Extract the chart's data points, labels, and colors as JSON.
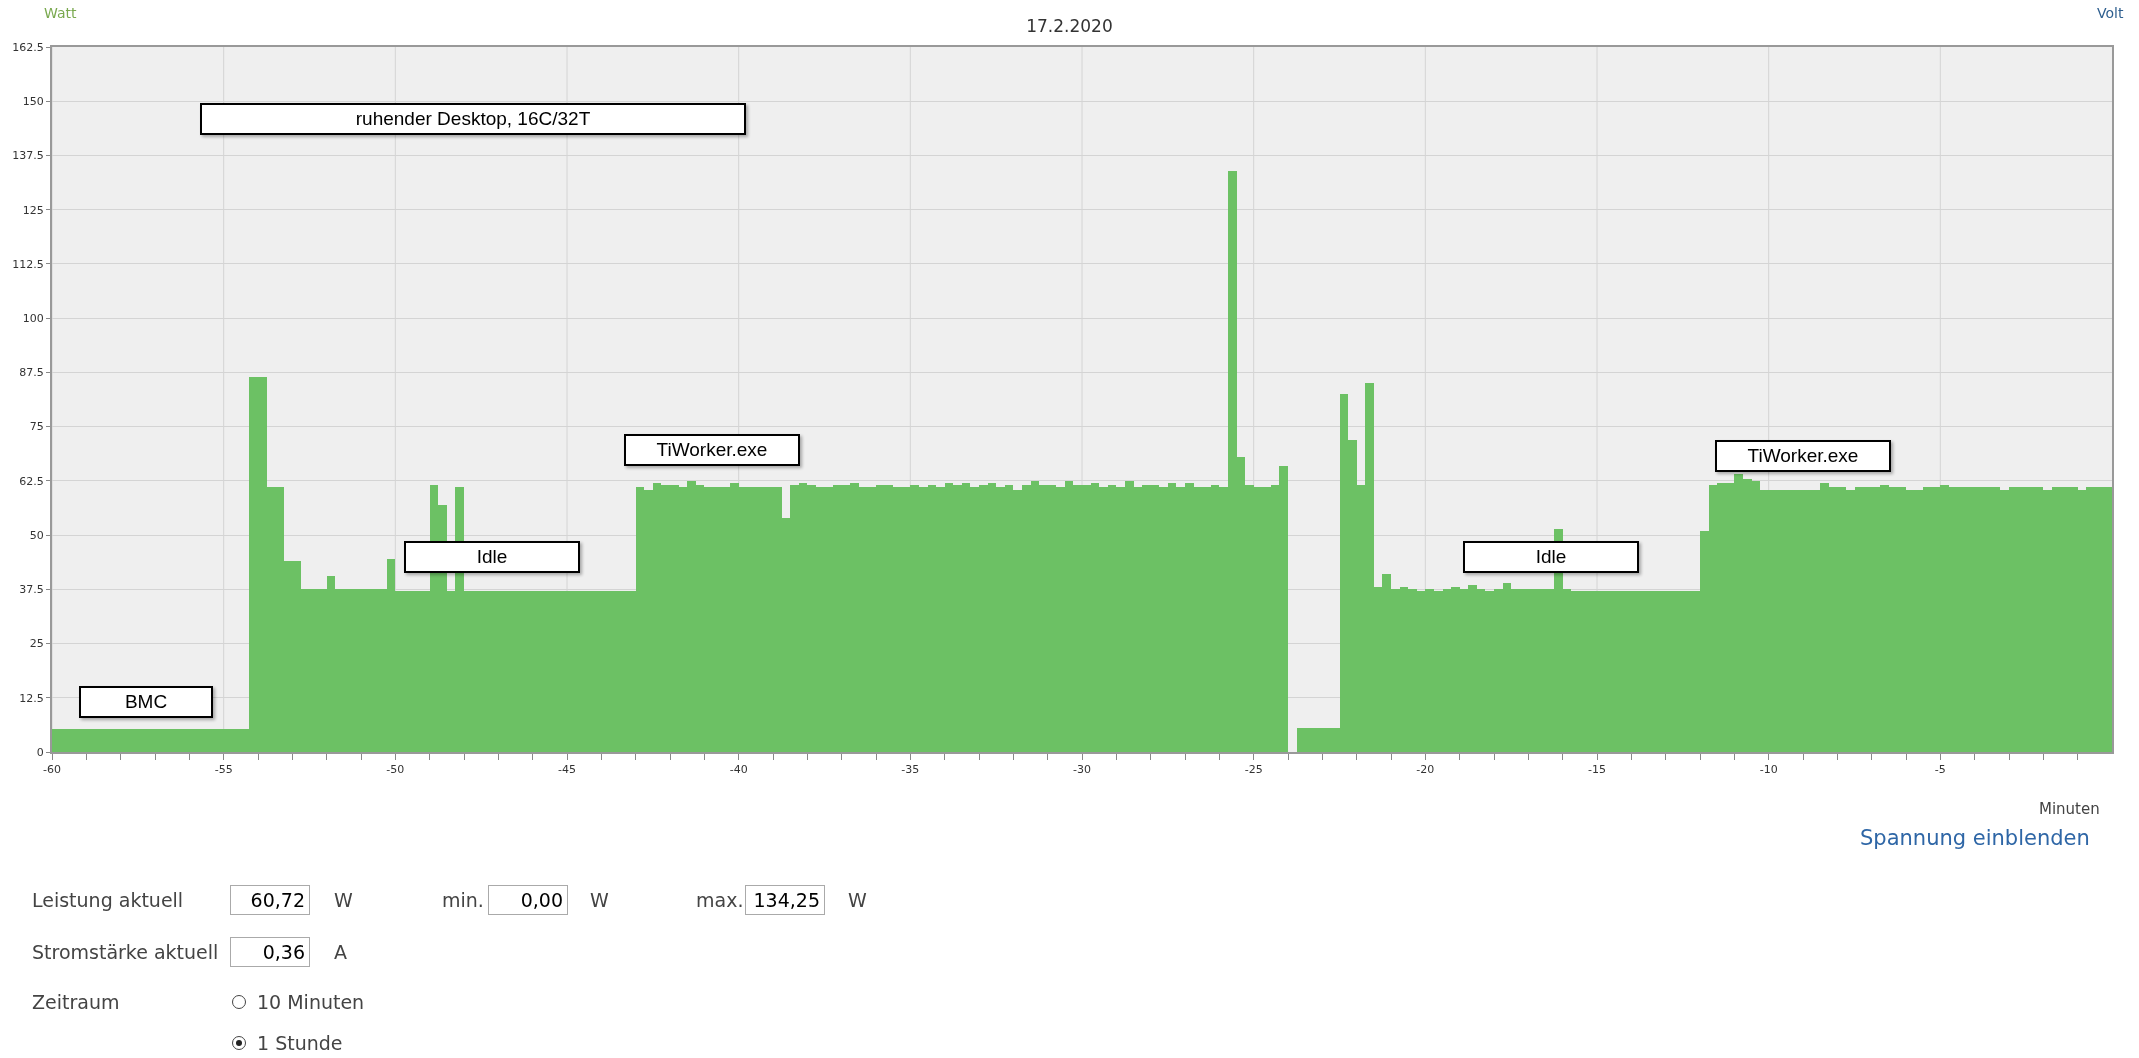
{
  "chart_data": {
    "type": "bar",
    "title": "17.2.2020",
    "ylabel": "Watt",
    "y2label": "Volt",
    "xlabel": "Minuten",
    "x": [
      -59.875,
      -59.625,
      -59.375,
      -59.125,
      -58.875,
      -58.625,
      -58.375,
      -58.125,
      -57.875,
      -57.625,
      -57.375,
      -57.125,
      -56.875,
      -56.625,
      -56.375,
      -56.125,
      -55.875,
      -55.625,
      -55.375,
      -55.125,
      -54.875,
      -54.625,
      -54.375,
      -54.125,
      -53.875,
      -53.625,
      -53.375,
      -53.125,
      -52.875,
      -52.625,
      -52.375,
      -52.125,
      -51.875,
      -51.625,
      -51.375,
      -51.125,
      -50.875,
      -50.625,
      -50.375,
      -50.125,
      -49.875,
      -49.625,
      -49.375,
      -49.125,
      -48.875,
      -48.625,
      -48.375,
      -48.125,
      -47.875,
      -47.625,
      -47.375,
      -47.125,
      -46.875,
      -46.625,
      -46.375,
      -46.125,
      -45.875,
      -45.625,
      -45.375,
      -45.125,
      -44.875,
      -44.625,
      -44.375,
      -44.125,
      -43.875,
      -43.625,
      -43.375,
      -43.125,
      -42.875,
      -42.625,
      -42.375,
      -42.125,
      -41.875,
      -41.625,
      -41.375,
      -41.125,
      -40.875,
      -40.625,
      -40.375,
      -40.125,
      -39.875,
      -39.625,
      -39.375,
      -39.125,
      -38.875,
      -38.625,
      -38.375,
      -38.125,
      -37.875,
      -37.625,
      -37.375,
      -37.125,
      -36.875,
      -36.625,
      -36.375,
      -36.125,
      -35.875,
      -35.625,
      -35.375,
      -35.125,
      -34.875,
      -34.625,
      -34.375,
      -34.125,
      -33.875,
      -33.625,
      -33.375,
      -33.125,
      -32.875,
      -32.625,
      -32.375,
      -32.125,
      -31.875,
      -31.625,
      -31.375,
      -31.125,
      -30.875,
      -30.625,
      -30.375,
      -30.125,
      -29.875,
      -29.625,
      -29.375,
      -29.125,
      -28.875,
      -28.625,
      -28.375,
      -28.125,
      -27.875,
      -27.625,
      -27.375,
      -27.125,
      -26.875,
      -26.625,
      -26.375,
      -26.125,
      -25.875,
      -25.625,
      -25.375,
      -25.125,
      -24.875,
      -24.625,
      -24.375,
      -24.125,
      -23.875,
      -23.625,
      -23.375,
      -23.125,
      -22.875,
      -22.625,
      -22.375,
      -22.125,
      -21.875,
      -21.625,
      -21.375,
      -21.125,
      -20.875,
      -20.625,
      -20.375,
      -20.125,
      -19.875,
      -19.625,
      -19.375,
      -19.125,
      -18.875,
      -18.625,
      -18.375,
      -18.125,
      -17.875,
      -17.625,
      -17.375,
      -17.125,
      -16.875,
      -16.625,
      -16.375,
      -16.125,
      -15.875,
      -15.625,
      -15.375,
      -15.125,
      -14.875,
      -14.625,
      -14.375,
      -14.125,
      -13.875,
      -13.625,
      -13.375,
      -13.125,
      -12.875,
      -12.625,
      -12.375,
      -12.125,
      -11.875,
      -11.625,
      -11.375,
      -11.125,
      -10.875,
      -10.625,
      -10.375,
      -10.125,
      -9.875,
      -9.625,
      -9.375,
      -9.125,
      -8.875,
      -8.625,
      -8.375,
      -8.125,
      -7.875,
      -7.625,
      -7.375,
      -7.125,
      -6.875,
      -6.625,
      -6.375,
      -6.125,
      -5.875,
      -5.625,
      -5.375,
      -5.125,
      -4.875,
      -4.625,
      -4.375,
      -4.125,
      -3.875,
      -3.625,
      -3.375,
      -3.125,
      -2.875,
      -2.625,
      -2.375,
      -2.125,
      -1.875,
      -1.625,
      -1.375,
      -1.125,
      -0.875,
      -0.625,
      -0.375,
      -0.125
    ],
    "series": [
      {
        "color": "#6cc164",
        "values": [
          5.2,
          5.2,
          5.2,
          5.2,
          5.2,
          5.2,
          5.2,
          5.2,
          5.2,
          5.2,
          5.2,
          5.2,
          5.2,
          5.2,
          5.2,
          5.2,
          5.2,
          5.2,
          5.2,
          5.2,
          5.2,
          5.2,
          5.2,
          86.5,
          86.5,
          61,
          61,
          44,
          44,
          37.5,
          37.5,
          37.5,
          40.5,
          37.5,
          37.5,
          37.5,
          37.5,
          37.5,
          37.5,
          44.5,
          37,
          37,
          37,
          37,
          61.5,
          57,
          37,
          61,
          37,
          37,
          37,
          37,
          37,
          37,
          37,
          37,
          37,
          37,
          37,
          37,
          37,
          37,
          37,
          37,
          37,
          37,
          37,
          37,
          61,
          60.5,
          62,
          61.5,
          61.5,
          61,
          62.5,
          61.5,
          61,
          61,
          61,
          62,
          61,
          61,
          61,
          61,
          61,
          54,
          61.5,
          62,
          61.5,
          61,
          61,
          61.5,
          61.5,
          62,
          61,
          61,
          61.5,
          61.5,
          61,
          61,
          61.5,
          61,
          61.5,
          61,
          62,
          61.5,
          62,
          61,
          61.5,
          62,
          61,
          61.5,
          60.5,
          61.5,
          62.5,
          61.5,
          61.5,
          61,
          62.5,
          61.5,
          61.5,
          62,
          61,
          61.5,
          61,
          62.5,
          61,
          61.5,
          61.5,
          61,
          62,
          61,
          62,
          61,
          61,
          61.5,
          61,
          134,
          68,
          61.5,
          61,
          61,
          61.5,
          66,
          0,
          5.5,
          5.5,
          5.5,
          5.5,
          5.5,
          82.5,
          72,
          61.5,
          85,
          38,
          41,
          37.5,
          38,
          37.5,
          37,
          37.5,
          37,
          37.5,
          38,
          37.5,
          38.5,
          37.5,
          37,
          37.5,
          39,
          37.5,
          37.5,
          37.5,
          37.5,
          37.5,
          51.5,
          37.5,
          37,
          37,
          37,
          37,
          37,
          37,
          37,
          37,
          37,
          37,
          37,
          37,
          37,
          37,
          37,
          51,
          61.5,
          62,
          62,
          64,
          63,
          62.5,
          60.5,
          60.5,
          60.5,
          60.5,
          60.5,
          60.5,
          60.5,
          62,
          61,
          61,
          60.5,
          61,
          61,
          61,
          61.5,
          61,
          61,
          60.5,
          60.5,
          61,
          61,
          61.5,
          61,
          61,
          61,
          61,
          61,
          61,
          60.5,
          61,
          61,
          61,
          61,
          60.5,
          61,
          61,
          61,
          60.5,
          61,
          61,
          61
        ]
      }
    ],
    "xlim": [
      -60,
      0
    ],
    "xticks": [
      -60,
      {
        "value": -59,
        "label": null
      },
      {
        "value": -58,
        "label": null
      },
      {
        "value": -57,
        "label": null
      },
      {
        "value": -56,
        "label": null
      },
      -55,
      {
        "value": -54,
        "label": null
      },
      {
        "value": -53,
        "label": null
      },
      {
        "value": -52,
        "label": null
      },
      {
        "value": -51,
        "label": null
      },
      -50,
      {
        "value": -49,
        "label": null
      },
      {
        "value": -48,
        "label": null
      },
      {
        "value": -47,
        "label": null
      },
      {
        "value": -46,
        "label": null
      },
      -45,
      {
        "value": -44,
        "label": null
      },
      {
        "value": -43,
        "label": null
      },
      {
        "value": -42,
        "label": null
      },
      {
        "value": -41,
        "label": null
      },
      -40,
      {
        "value": -39,
        "label": null
      },
      {
        "value": -38,
        "label": null
      },
      {
        "value": -37,
        "label": null
      },
      {
        "value": -36,
        "label": null
      },
      -35,
      {
        "value": -34,
        "label": null
      },
      {
        "value": -33,
        "label": null
      },
      {
        "value": -32,
        "label": null
      },
      {
        "value": -31,
        "label": null
      },
      -30,
      {
        "value": -29,
        "label": null
      },
      {
        "value": -28,
        "label": null
      },
      {
        "value": -27,
        "label": null
      },
      {
        "value": -26,
        "label": null
      },
      -25,
      {
        "value": -24,
        "label": null
      },
      {
        "value": -23,
        "label": null
      },
      {
        "value": -22,
        "label": null
      },
      {
        "value": -21,
        "label": null
      },
      -20,
      {
        "value": -19,
        "label": null
      },
      {
        "value": -18,
        "label": null
      },
      {
        "value": -17,
        "label": null
      },
      {
        "value": -16,
        "label": null
      },
      -15,
      {
        "value": -14,
        "label": null
      },
      {
        "value": -13,
        "label": null
      },
      {
        "value": -12,
        "label": null
      },
      {
        "value": -11,
        "label": null
      },
      -10,
      {
        "value": -9,
        "label": null
      },
      {
        "value": -8,
        "label": null
      },
      {
        "value": -7,
        "label": null
      },
      {
        "value": -6,
        "label": null
      },
      -5,
      {
        "value": -4,
        "label": null
      },
      {
        "value": -3,
        "label": null
      },
      {
        "value": -2,
        "label": null
      },
      {
        "value": -1,
        "label": null
      }
    ],
    "ylim": [
      0,
      162.5
    ],
    "yticks": [
      0,
      12.5,
      25,
      37.5,
      50,
      62.5,
      75,
      87.5,
      100,
      112.5,
      125,
      137.5,
      150,
      162.5
    ],
    "grid": true,
    "annotations": [
      "ruhender Desktop, 16C/32T",
      "BMC",
      "Idle",
      "TiWorker.exe",
      "Idle",
      "TiWorker.exe",
      "Spannung einblenden",
      "Leistung aktuell",
      "60,72",
      "W",
      "min.",
      "0,00",
      "W",
      "max.",
      "134,25",
      "W",
      "Stromstärke aktuell",
      "0,36",
      "A",
      "Zeitraum",
      "10 Minuten",
      "1 Stunde"
    ]
  }
}
